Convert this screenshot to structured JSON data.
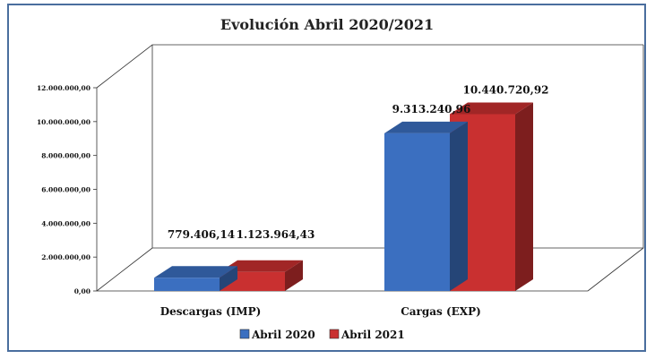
{
  "chart_data": {
    "type": "bar",
    "title": "Evolución Abril 2020/2021",
    "xlabel": "",
    "ylabel": "",
    "categories": [
      "Descargas (IMP)",
      "Cargas (EXP)"
    ],
    "series": [
      {
        "name": "Abril 2020",
        "values": [
          779406.14,
          9313240.96
        ],
        "labels": [
          "779.406,14",
          "9.313.240,96"
        ],
        "color": "#3b6fc0"
      },
      {
        "name": "Abril 2021",
        "values": [
          1123964.43,
          10440720.92
        ],
        "labels": [
          "1.123.964,43",
          "10.440.720,92"
        ],
        "color": "#c93030"
      }
    ],
    "ylim": [
      0,
      12000000
    ],
    "yticks": [
      "0,00",
      "2.000.000,00",
      "4.000.000,00",
      "6.000.000,00",
      "8.000.000,00",
      "10.000.000,00",
      "12.000.000,00"
    ],
    "three_d": true,
    "grid": false,
    "legend_position": "bottom"
  }
}
